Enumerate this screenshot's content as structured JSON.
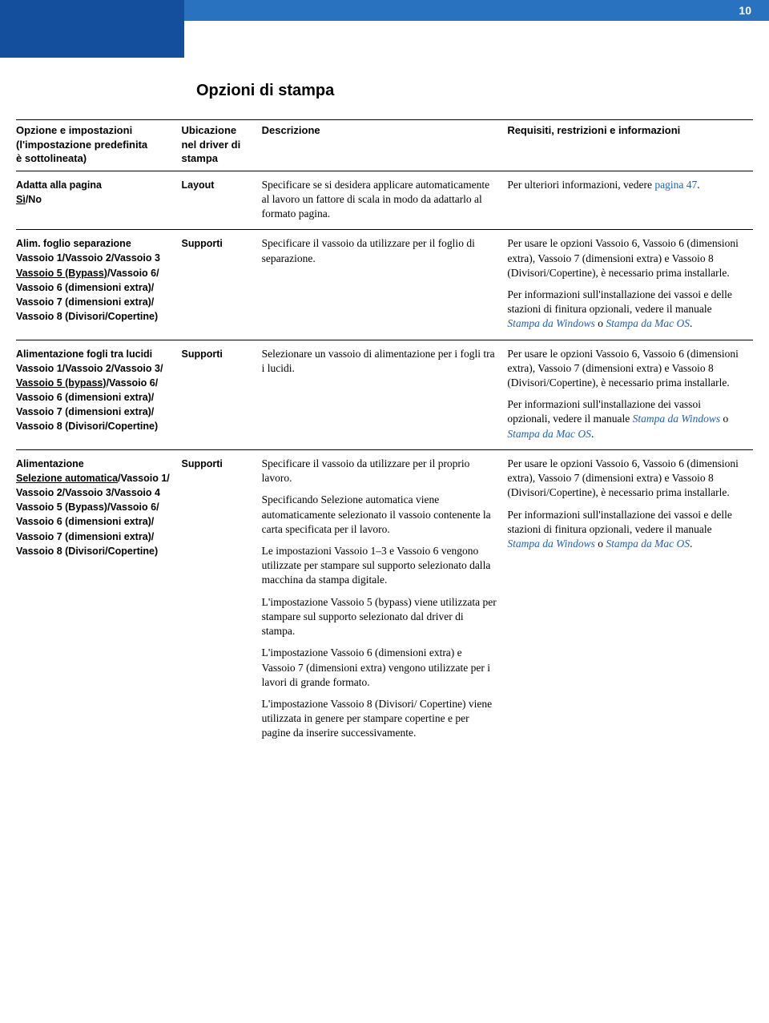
{
  "header": {
    "title": "Opzioni di stampa",
    "page": "10"
  },
  "section_heading": "Opzioni di stampa",
  "columns": {
    "c1a": "Opzione e impostazioni",
    "c1b": "(l'impostazione predefinita",
    "c1c": "è sottolineata)",
    "c2a": "Ubicazione",
    "c2b": "nel driver di",
    "c2c": "stampa",
    "c3": "Descrizione",
    "c4": "Requisiti, restrizioni e informazioni"
  },
  "rows": {
    "r1": {
      "opt_l1": "Adatta alla pagina",
      "opt_def": "Sì",
      "opt_rest": "/No",
      "loc": "Layout",
      "desc_p1": "Specificare se si desidera applicare automaticamente al lavoro un fattore di scala in modo da adattarlo al formato pagina.",
      "req_p1a": "Per ulteriori informazioni, vedere ",
      "req_p1_link": "pagina 47",
      "req_p1b": "."
    },
    "r2": {
      "opt_l1": "Alim. foglio separazione",
      "opt_l2": "Vassoio 1/Vassoio 2/Vassoio 3",
      "opt_l3a": "",
      "opt_def": "Vassoio 5 (Bypass)",
      "opt_l3b": "/Vassoio 6/",
      "opt_l4": "Vassoio 6 (dimensioni extra)/",
      "opt_l5": "Vassoio 7 (dimensioni extra)/",
      "opt_l6": "Vassoio 8 (Divisori/Copertine)",
      "loc": "Supporti",
      "desc_p1": "Specificare il vassoio da utilizzare per il foglio di separazione.",
      "req_p1": "Per usare le opzioni Vassoio 6, Vassoio 6 (dimensioni extra), Vassoio 7 (dimensioni extra) e Vassoio 8 (Divisori/Copertine), è necessario prima installarle.",
      "req_p2a": "Per informazioni sull'installazione dei vassoi e delle stazioni di finitura opzionali, vedere il manuale ",
      "req_p2_link1": "Stampa da Windows",
      "req_p2b": " o ",
      "req_p2_link2": "Stampa da Mac OS",
      "req_p2c": "."
    },
    "r3": {
      "opt_l1": "Alimentazione fogli tra lucidi",
      "opt_l2": "Vassoio 1/Vassoio 2/Vassoio 3/",
      "opt_def": "Vassoio 5 (bypass)",
      "opt_l3b": "/Vassoio 6/",
      "opt_l4": "Vassoio 6 (dimensioni extra)/",
      "opt_l5": "Vassoio 7 (dimensioni extra)/",
      "opt_l6": "Vassoio 8 (Divisori/Copertine)",
      "loc": "Supporti",
      "desc_p1": "Selezionare un vassoio di alimentazione per i fogli tra i lucidi.",
      "req_p1": "Per usare le opzioni Vassoio 6, Vassoio 6 (dimensioni extra), Vassoio 7 (dimensioni extra) e Vassoio 8 (Divisori/Copertine), è necessario prima installarle.",
      "req_p2a": "Per informazioni sull'installazione dei vassoi opzionali, vedere il manuale ",
      "req_p2_link1": "Stampa da Windows",
      "req_p2b": " o ",
      "req_p2_link2": "Stampa da Mac OS",
      "req_p2c": "."
    },
    "r4": {
      "opt_l1": "Alimentazione",
      "opt_def": "Selezione automatica",
      "opt_l2b": "/Vassoio 1/",
      "opt_l3": "Vassoio 2/Vassoio 3/Vassoio 4",
      "opt_l4": "Vassoio 5 (Bypass)/Vassoio 6/",
      "opt_l5": "Vassoio 6 (dimensioni extra)/",
      "opt_l6": "Vassoio 7 (dimensioni extra)/",
      "opt_l7": "Vassoio 8 (Divisori/Copertine)",
      "loc": "Supporti",
      "desc_p1": "Specificare il vassoio da utilizzare per il proprio lavoro.",
      "desc_p2": "Specificando Selezione automatica viene automaticamente selezionato il vassoio contenente la carta specificata per il lavoro.",
      "desc_p3": "Le impostazioni Vassoio 1–3 e Vassoio 6 vengono utilizzate per stampare sul supporto selezionato dalla macchina da stampa digitale.",
      "desc_p4": "L'impostazione Vassoio 5 (bypass) viene utilizzata per stampare sul supporto selezionato dal driver di stampa.",
      "desc_p5": "L'impostazione Vassoio 6 (dimensioni extra) e Vassoio 7 (dimensioni extra) vengono utilizzate per i lavori di grande formato.",
      "desc_p6": "L'impostazione Vassoio 8 (Divisori/ Copertine) viene utilizzata in genere per stampare copertine e per pagine da inserire successivamente.",
      "req_p1": "Per usare le opzioni Vassoio 6, Vassoio 6 (dimensioni extra), Vassoio 7 (dimensioni extra) e Vassoio 8 (Divisori/Copertine), è necessario prima installarle.",
      "req_p2a": "Per informazioni sull'installazione dei vassoi e delle stazioni di finitura opzionali, vedere il manuale  ",
      "req_p2_link1": "Stampa da Windows",
      "req_p2b": " o ",
      "req_p2_link2": "Stampa da Mac OS",
      "req_p2c": "."
    }
  }
}
